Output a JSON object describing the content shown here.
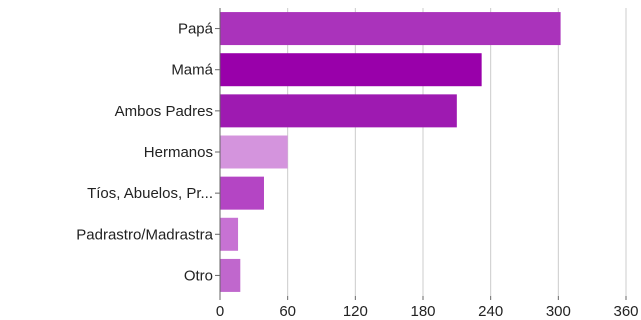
{
  "chart_data": {
    "type": "bar",
    "orientation": "horizontal",
    "title": "",
    "xlabel": "",
    "ylabel": "",
    "categories": [
      "Papá",
      "Mamá",
      "Ambos Padres",
      "Hermanos",
      "Tíos, Abuelos, Pr...",
      "Padrastro/Madrastra",
      "Otro"
    ],
    "values": [
      302,
      232,
      210,
      60,
      39,
      16,
      18
    ],
    "colors": [
      "#aa33bb",
      "#9900aa",
      "#9e1ab1",
      "#d494dd",
      "#b445c4",
      "#c772d3",
      "#c067cd"
    ],
    "xlim": [
      0,
      360
    ],
    "xticks": [
      "0",
      "60",
      "120",
      "180",
      "240",
      "300",
      "360"
    ],
    "grid": true,
    "legend": "none"
  }
}
